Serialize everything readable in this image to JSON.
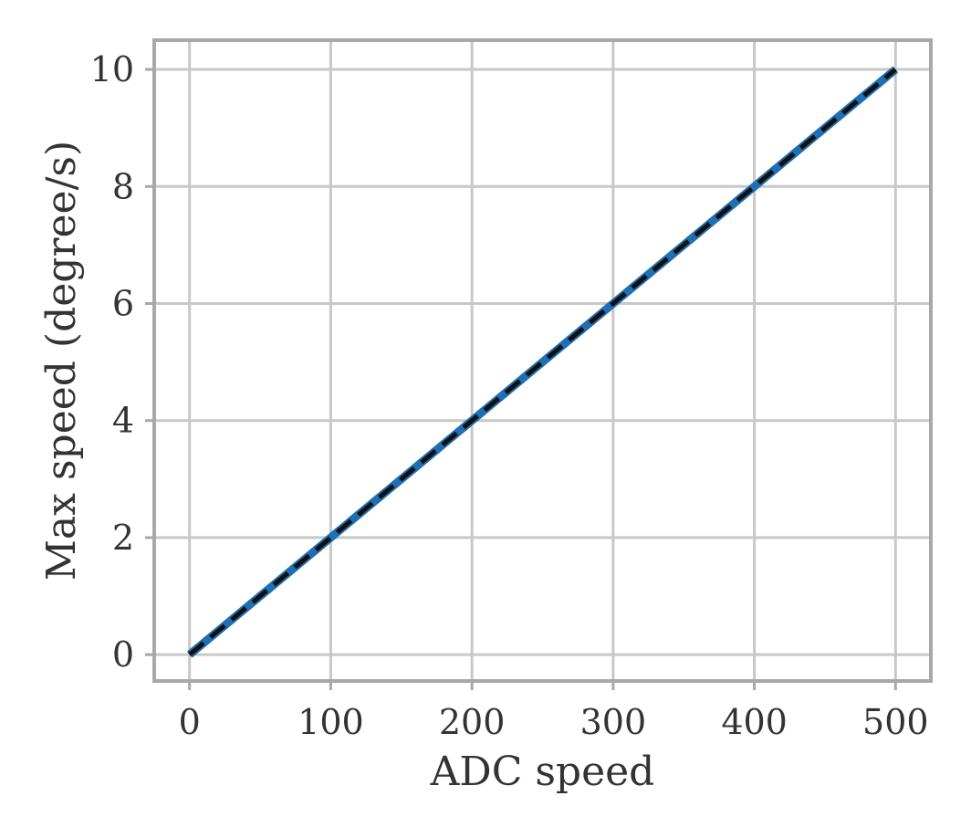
{
  "chart_data": {
    "type": "line",
    "xlabel": "ADC speed",
    "ylabel": "Max speed (degree/s)",
    "xlim": [
      -25,
      525
    ],
    "ylim": [
      -0.45,
      10.5
    ],
    "xticks": [
      0,
      100,
      200,
      300,
      400,
      500
    ],
    "yticks": [
      0,
      2,
      4,
      6,
      8,
      10
    ],
    "xtick_labels": [
      "0",
      "100",
      "200",
      "300",
      "400",
      "500"
    ],
    "ytick_labels": [
      "0",
      "2",
      "4",
      "6",
      "8",
      "10"
    ],
    "grid": true,
    "series": [
      {
        "style": "solid",
        "color": "#1f6fb4",
        "x": [
          0,
          500
        ],
        "y": [
          0,
          10
        ]
      },
      {
        "style": "dashed",
        "color": "#111111",
        "x": [
          0,
          500
        ],
        "y": [
          0,
          10
        ]
      }
    ]
  }
}
